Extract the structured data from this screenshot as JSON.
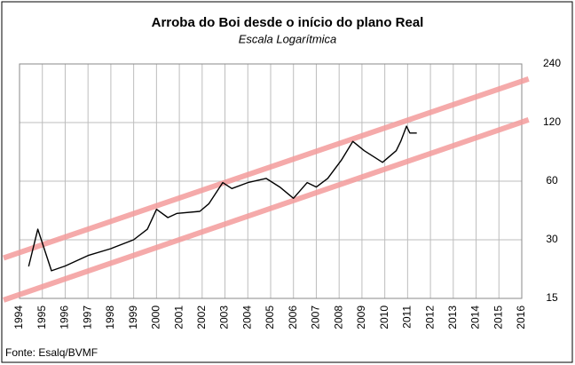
{
  "chart_data": {
    "type": "line",
    "title": "Arroba do Boi desde o início do plano Real",
    "subtitle": "Escala Logarítmica",
    "source": "Fonte: Esalq/BVMF",
    "xlim": [
      1994,
      2016
    ],
    "xticks": [
      1994,
      1995,
      1996,
      1997,
      1998,
      1999,
      2000,
      2001,
      2002,
      2003,
      2004,
      2005,
      2006,
      2007,
      2008,
      2009,
      2010,
      2011,
      2012,
      2013,
      2014,
      2015,
      2016
    ],
    "ylim": [
      15,
      240
    ],
    "yticks": [
      15,
      30,
      60,
      120,
      240
    ],
    "y_scale": "log",
    "y_axis_side": "right",
    "grid": true,
    "series": [
      {
        "color": "#f39b9b",
        "x": [
          1993.3,
          2016.3
        ],
        "values": [
          24.2,
          201
        ]
      },
      {
        "color": "#f39b9b",
        "x": [
          1993.3,
          2016.3
        ],
        "values": [
          14.7,
          124
        ]
      },
      {
        "color": "#000000",
        "x": [
          1994.4,
          1994.8,
          1995.4,
          1996.0,
          1997.0,
          1998.0,
          1999.0,
          1999.6,
          2000.0,
          2000.5,
          2000.9,
          2001.9,
          2002.3,
          2002.9,
          2003.3,
          2004.0,
          2004.8,
          2005.4,
          2006.0,
          2006.6,
          2007.0,
          2007.5,
          2008.1,
          2008.6,
          2009.1,
          2009.9,
          2010.5,
          2010.7,
          2010.95,
          2011.1,
          2011.4
        ],
        "values": [
          21.9,
          34,
          20.8,
          22,
          24.9,
          27,
          30,
          34,
          43,
          39,
          41,
          42,
          46,
          59,
          55,
          59,
          62,
          56,
          49,
          59,
          56,
          62,
          77,
          96,
          86,
          75,
          86,
          96,
          115,
          106,
          106
        ]
      }
    ]
  }
}
